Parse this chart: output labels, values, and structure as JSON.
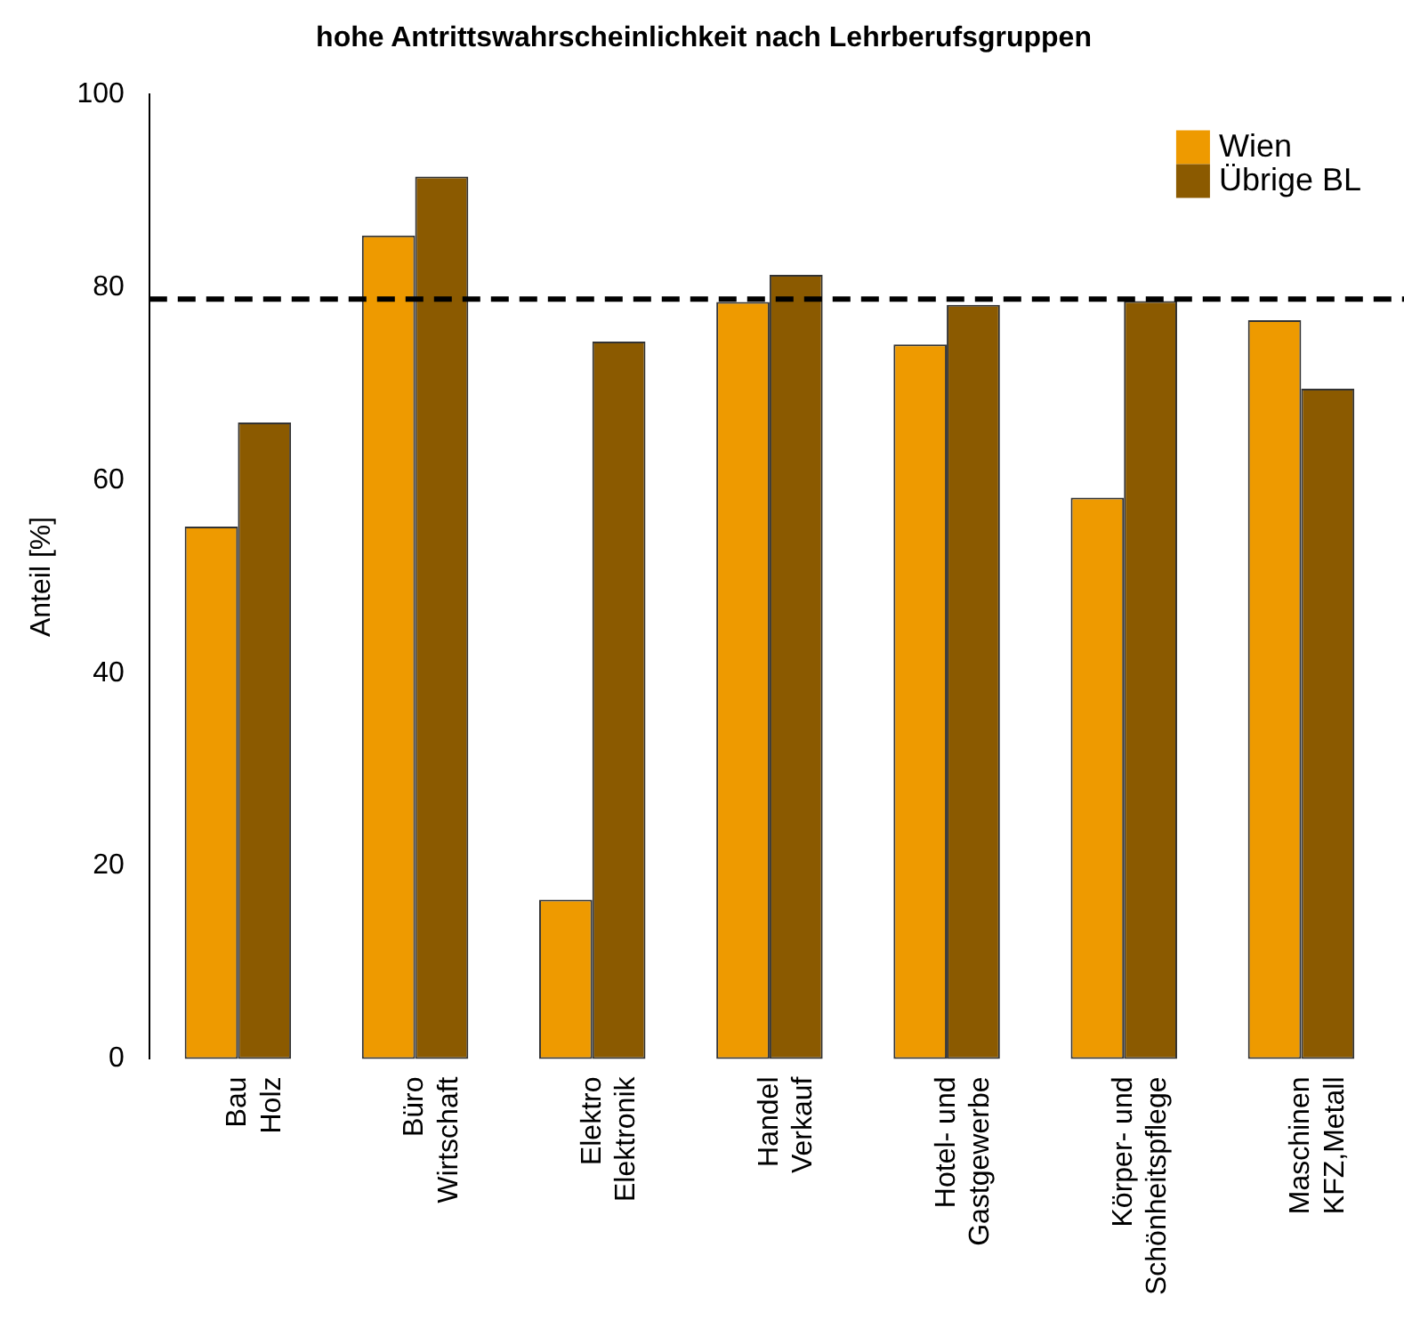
{
  "chart_data": {
    "type": "bar",
    "title": "hohe Antrittswahrscheinlichkeit nach Lehrberufsgruppen",
    "ylabel": "Anteil [%]",
    "categories": [
      "Bau\nHolz",
      "Büro\nWirtschaft",
      "Elektro\nElektronik",
      "Handel\nVerkauf",
      "Hotel- und\nGastgewerbe",
      "Körper- und\nSchönheitspflege",
      "Maschinen\nKFZ,Metall"
    ],
    "series": [
      {
        "name": "Wien",
        "color": "#ee9a00",
        "values": [
          55.2,
          85.4,
          16.5,
          78.5,
          74.1,
          58.2,
          76.6
        ]
      },
      {
        "name": "Übrige BL",
        "color": "#8b5a00",
        "values": [
          66.0,
          91.5,
          74.4,
          81.3,
          78.2,
          78.6,
          69.5
        ]
      }
    ],
    "ylim": [
      0,
      100
    ],
    "yticks": [
      0,
      20,
      40,
      60,
      80,
      100
    ],
    "grid": false,
    "legend": "top right",
    "ref_lines": [
      {
        "axis": "y",
        "value": 78.8,
        "color": "#000000",
        "line_style": "dashed"
      }
    ]
  }
}
